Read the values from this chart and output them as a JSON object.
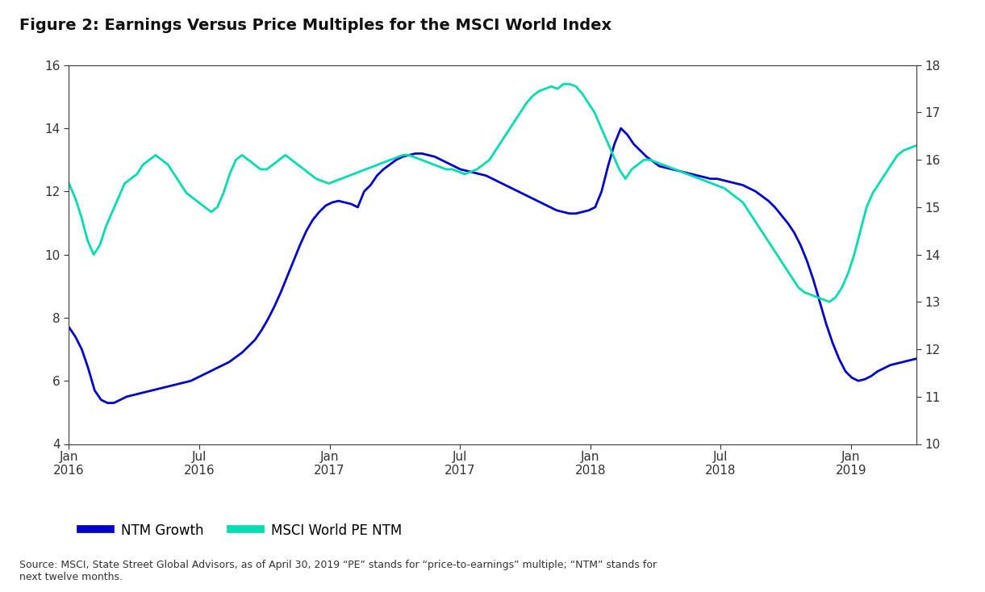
{
  "title": "Figure 2: Earnings Versus Price Multiples for the MSCI World Index",
  "source_text": "Source: MSCI, State Street Global Advisors, as of April 30, 2019 “PE” stands for “price-to-earnings” multiple; “NTM” stands for\nnext twelve months.",
  "left_ylim": [
    4,
    16
  ],
  "right_ylim": [
    10,
    18
  ],
  "left_yticks": [
    4,
    6,
    8,
    10,
    12,
    14,
    16
  ],
  "right_yticks": [
    10,
    11,
    12,
    13,
    14,
    15,
    16,
    17,
    18
  ],
  "line1_color": "#0000cc",
  "line2_color": "#00ddb0",
  "line1_label": "NTM Growth",
  "line2_label": "MSCI World PE NTM",
  "line_width": 2.0,
  "background_color": "#ffffff",
  "title_fontsize": 14,
  "tick_fontsize": 11,
  "legend_fontsize": 12,
  "ntm_growth": [
    7.7,
    7.4,
    7.0,
    6.4,
    5.7,
    5.4,
    5.3,
    5.3,
    5.4,
    5.5,
    5.55,
    5.6,
    5.65,
    5.7,
    5.75,
    5.8,
    5.85,
    5.9,
    5.95,
    6.0,
    6.1,
    6.2,
    6.3,
    6.4,
    6.5,
    6.6,
    6.75,
    6.9,
    7.1,
    7.3,
    7.6,
    7.95,
    8.35,
    8.8,
    9.3,
    9.8,
    10.3,
    10.75,
    11.1,
    11.35,
    11.55,
    11.65,
    11.7,
    11.65,
    11.6,
    11.5,
    12.0,
    12.2,
    12.5,
    12.7,
    12.85,
    13.0,
    13.1,
    13.15,
    13.2,
    13.2,
    13.15,
    13.1,
    13.0,
    12.9,
    12.8,
    12.7,
    12.65,
    12.6,
    12.55,
    12.5,
    12.4,
    12.3,
    12.2,
    12.1,
    12.0,
    11.9,
    11.8,
    11.7,
    11.6,
    11.5,
    11.4,
    11.35,
    11.3,
    11.3,
    11.35,
    11.4,
    11.5,
    12.0,
    12.8,
    13.5,
    14.0,
    13.8,
    13.5,
    13.3,
    13.1,
    12.95,
    12.8,
    12.75,
    12.7,
    12.65,
    12.6,
    12.55,
    12.5,
    12.45,
    12.4,
    12.4,
    12.35,
    12.3,
    12.25,
    12.2,
    12.1,
    12.0,
    11.85,
    11.7,
    11.5,
    11.25,
    11.0,
    10.7,
    10.3,
    9.8,
    9.2,
    8.5,
    7.8,
    7.2,
    6.7,
    6.3,
    6.1,
    6.0,
    6.05,
    6.15,
    6.3,
    6.4,
    6.5,
    6.55,
    6.6,
    6.65,
    6.7
  ],
  "msci_pe": [
    15.5,
    15.2,
    14.8,
    14.3,
    14.0,
    14.2,
    14.6,
    14.9,
    15.2,
    15.5,
    15.6,
    15.7,
    15.9,
    16.0,
    16.1,
    16.0,
    15.9,
    15.7,
    15.5,
    15.3,
    15.2,
    15.1,
    15.0,
    14.9,
    15.0,
    15.3,
    15.7,
    16.0,
    16.1,
    16.0,
    15.9,
    15.8,
    15.8,
    15.9,
    16.0,
    16.1,
    16.0,
    15.9,
    15.8,
    15.7,
    15.6,
    15.55,
    15.5,
    15.55,
    15.6,
    15.65,
    15.7,
    15.75,
    15.8,
    15.85,
    15.9,
    15.95,
    16.0,
    16.05,
    16.1,
    16.1,
    16.05,
    16.0,
    15.95,
    15.9,
    15.85,
    15.8,
    15.8,
    15.75,
    15.7,
    15.75,
    15.8,
    15.9,
    16.0,
    16.2,
    16.4,
    16.6,
    16.8,
    17.0,
    17.2,
    17.35,
    17.45,
    17.5,
    17.55,
    17.5,
    17.6,
    17.6,
    17.55,
    17.4,
    17.2,
    17.0,
    16.7,
    16.4,
    16.1,
    15.8,
    15.6,
    15.8,
    15.9,
    16.0,
    16.0,
    15.95,
    15.9,
    15.85,
    15.8,
    15.75,
    15.7,
    15.65,
    15.6,
    15.55,
    15.5,
    15.45,
    15.4,
    15.3,
    15.2,
    15.1,
    14.9,
    14.7,
    14.5,
    14.3,
    14.1,
    13.9,
    13.7,
    13.5,
    13.3,
    13.2,
    13.15,
    13.1,
    13.05,
    13.0,
    13.1,
    13.3,
    13.6,
    14.0,
    14.5,
    15.0,
    15.3,
    15.5,
    15.7,
    15.9,
    16.1,
    16.2,
    16.25,
    16.3
  ],
  "xtick_months": [
    0,
    6,
    12,
    18,
    24,
    30,
    36,
    42
  ],
  "xtick_labels": [
    "Jan\n2016",
    "Jul\n2016",
    "Jan\n2017",
    "Jul\n2017",
    "Jan\n2018",
    "Jul\n2018",
    "Jan\n2019",
    ""
  ],
  "total_months": 40
}
